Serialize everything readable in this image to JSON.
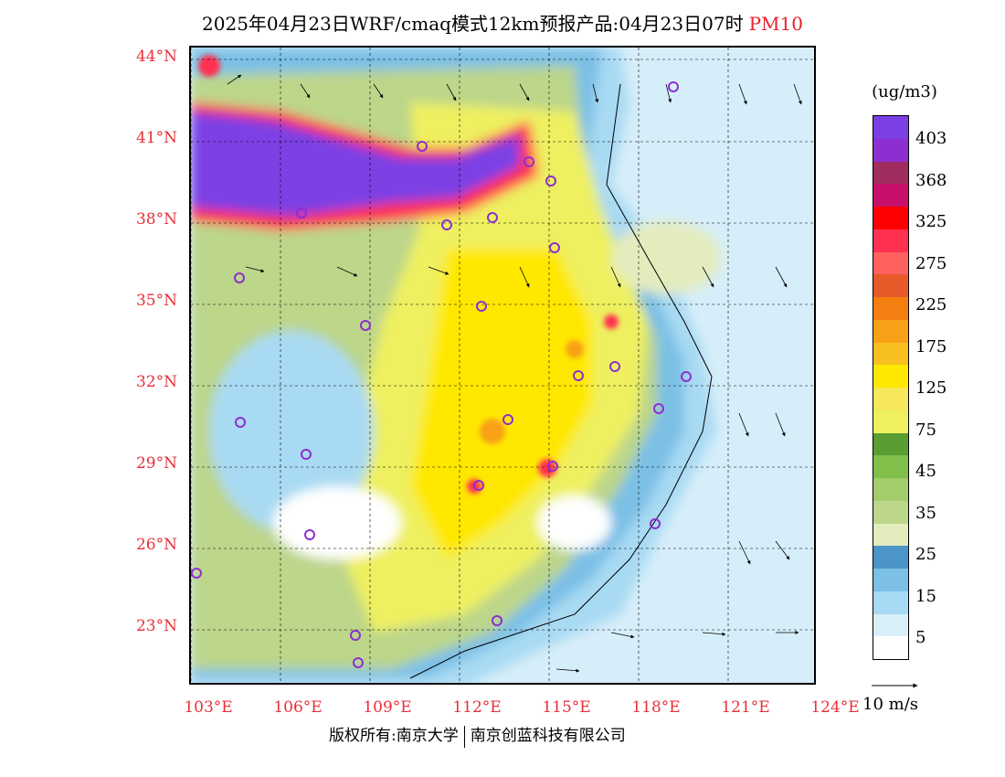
{
  "title": "2025年04月23日WRF/cmaq模式12km预报产品:04月23日07时",
  "pollutant": "PM10",
  "unit": "(ug/m3)",
  "lat_labels": [
    "44°N",
    "41°N",
    "38°N",
    "35°N",
    "32°N",
    "29°N",
    "26°N",
    "23°N"
  ],
  "lon_labels": [
    "103°E",
    "106°E",
    "109°E",
    "112°E",
    "115°E",
    "118°E",
    "121°E",
    "124°E"
  ],
  "legend": {
    "labels": [
      "403",
      "368",
      "325",
      "275",
      "225",
      "175",
      "125",
      "75",
      "45",
      "35",
      "25",
      "15",
      "5"
    ],
    "colors": [
      "#ffffff",
      "#d9f0fb",
      "#a9daf3",
      "#7cc0e6",
      "#4b95c9",
      "#e4ecbe",
      "#bcd68a",
      "#a3cc6b",
      "#7fbf4a",
      "#5a9e32",
      "#eef060",
      "#f6e85a",
      "#ffe800",
      "#f7c020",
      "#f8a018",
      "#f47f10",
      "#e85a2a",
      "#ff6060",
      "#ff3050",
      "#ff0000",
      "#c8106a",
      "#a02c60",
      "#8d2fd0",
      "#7b3fe4"
    ]
  },
  "wind_scale_label": "10 m/s",
  "copyright": {
    "left": "版权所有:南京大学",
    "right": "南京创蓝科技有限公司"
  }
}
